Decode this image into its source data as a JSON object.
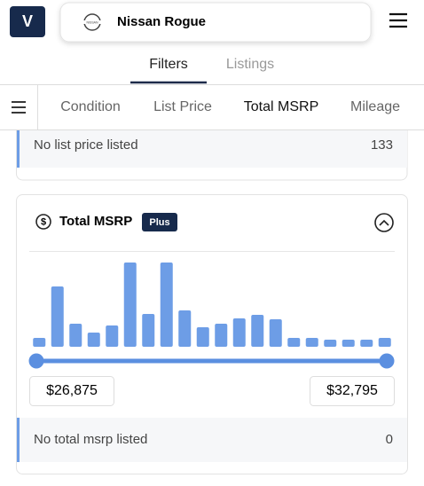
{
  "header": {
    "logo": "V",
    "search": "Nissan Rogue"
  },
  "tabs": [
    "Filters",
    "Listings"
  ],
  "nav": [
    "Condition",
    "List Price",
    "Total MSRP",
    "Mileage"
  ],
  "list_price": {
    "empty_label": "No list price listed",
    "empty_count": 133
  },
  "msrp": {
    "title": "Total MSRP",
    "badge": "Plus",
    "histogram": {
      "values": [
        10,
        68,
        26,
        16,
        24,
        95,
        37,
        95,
        41,
        22,
        26,
        32,
        36,
        31,
        10,
        10,
        8,
        8,
        8,
        10
      ],
      "color": "#6d9de6"
    },
    "range": {
      "min_label": "$26,875",
      "max_label": "$32,795"
    },
    "empty_label": "No total msrp listed",
    "empty_count": 0
  }
}
